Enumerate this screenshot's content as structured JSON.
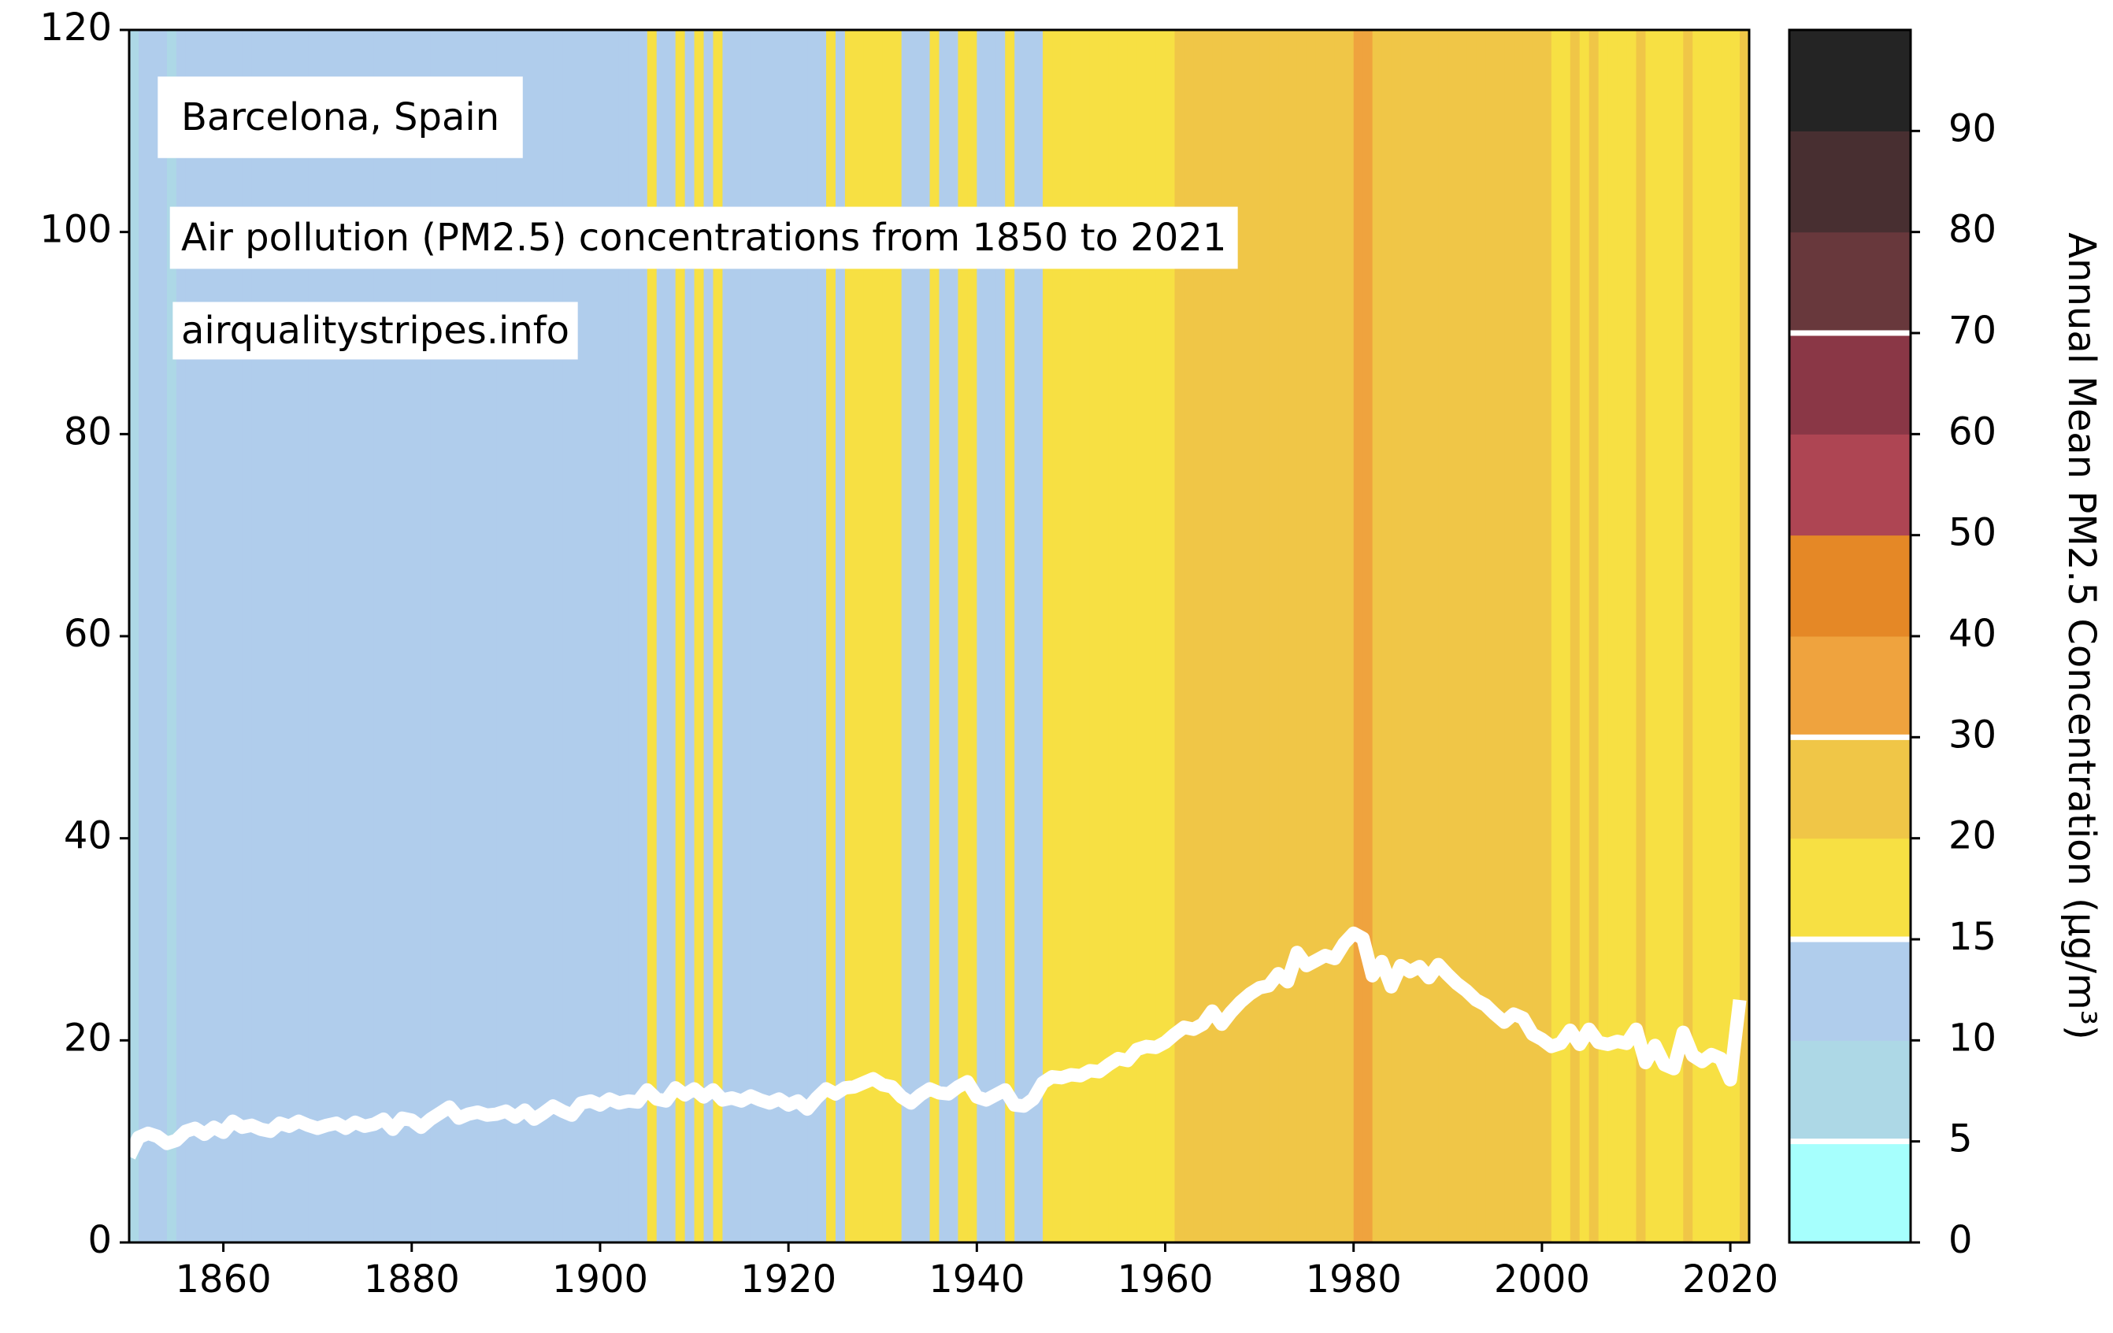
{
  "chart_data": {
    "type": "stripes",
    "title": "Barcelona, Spain",
    "subtitle": "Air pollution (PM2.5) concentrations from 1850 to 2021",
    "source": "airqualitystripes.info",
    "x": [
      1850,
      1851,
      1852,
      1853,
      1854,
      1855,
      1856,
      1857,
      1858,
      1859,
      1860,
      1861,
      1862,
      1863,
      1864,
      1865,
      1866,
      1867,
      1868,
      1869,
      1870,
      1871,
      1872,
      1873,
      1874,
      1875,
      1876,
      1877,
      1878,
      1879,
      1880,
      1881,
      1882,
      1883,
      1884,
      1885,
      1886,
      1887,
      1888,
      1889,
      1890,
      1891,
      1892,
      1893,
      1894,
      1895,
      1896,
      1897,
      1898,
      1899,
      1900,
      1901,
      1902,
      1903,
      1904,
      1905,
      1906,
      1907,
      1908,
      1909,
      1910,
      1911,
      1912,
      1913,
      1914,
      1915,
      1916,
      1917,
      1918,
      1919,
      1920,
      1921,
      1922,
      1923,
      1924,
      1925,
      1926,
      1927,
      1928,
      1929,
      1930,
      1931,
      1932,
      1933,
      1934,
      1935,
      1936,
      1937,
      1938,
      1939,
      1940,
      1941,
      1942,
      1943,
      1944,
      1945,
      1946,
      1947,
      1948,
      1949,
      1950,
      1951,
      1952,
      1953,
      1954,
      1955,
      1956,
      1957,
      1958,
      1959,
      1960,
      1961,
      1962,
      1963,
      1964,
      1965,
      1966,
      1967,
      1968,
      1969,
      1970,
      1971,
      1972,
      1973,
      1974,
      1975,
      1976,
      1977,
      1978,
      1979,
      1980,
      1981,
      1982,
      1983,
      1984,
      1985,
      1986,
      1987,
      1988,
      1989,
      1990,
      1991,
      1992,
      1993,
      1994,
      1995,
      1996,
      1997,
      1998,
      1999,
      2000,
      2001,
      2002,
      2003,
      2004,
      2005,
      2006,
      2007,
      2008,
      2009,
      2010,
      2011,
      2012,
      2013,
      2014,
      2015,
      2016,
      2017,
      2018,
      2019,
      2020,
      2021
    ],
    "values": [
      8.5,
      10.4,
      10.8,
      10.5,
      9.8,
      10.1,
      11.0,
      11.3,
      10.7,
      11.4,
      10.9,
      12.0,
      11.4,
      11.6,
      11.2,
      11.0,
      11.8,
      11.5,
      12.0,
      11.6,
      11.3,
      11.6,
      11.8,
      11.3,
      11.9,
      11.5,
      11.7,
      12.2,
      11.2,
      12.3,
      12.1,
      11.4,
      12.2,
      12.8,
      13.4,
      12.3,
      12.7,
      12.9,
      12.6,
      12.7,
      13.0,
      12.4,
      13.1,
      12.2,
      12.8,
      13.5,
      13.0,
      12.6,
      13.8,
      14.0,
      13.6,
      14.2,
      13.8,
      14.0,
      13.9,
      15.1,
      14.2,
      14.0,
      15.3,
      14.6,
      15.2,
      14.4,
      15.1,
      14.1,
      14.3,
      14.0,
      14.5,
      14.1,
      13.8,
      14.2,
      13.6,
      14.0,
      13.2,
      14.3,
      15.2,
      14.7,
      15.3,
      15.4,
      15.8,
      16.2,
      15.6,
      15.4,
      14.4,
      13.8,
      14.6,
      15.2,
      14.8,
      14.7,
      15.4,
      15.9,
      14.4,
      14.1,
      14.6,
      15.1,
      13.6,
      13.5,
      14.2,
      15.8,
      16.4,
      16.3,
      16.6,
      16.5,
      17.0,
      16.9,
      17.6,
      18.2,
      18.0,
      19.1,
      19.4,
      19.3,
      19.8,
      20.6,
      21.3,
      21.1,
      21.6,
      22.9,
      21.6,
      22.8,
      23.8,
      24.6,
      25.2,
      25.4,
      26.6,
      25.8,
      28.7,
      27.4,
      27.9,
      28.4,
      28.1,
      29.6,
      30.6,
      30.1,
      26.4,
      27.8,
      25.3,
      27.4,
      26.8,
      27.3,
      26.2,
      27.5,
      26.5,
      25.6,
      24.9,
      24.0,
      23.5,
      22.6,
      21.8,
      22.6,
      22.2,
      20.6,
      20.1,
      19.4,
      19.7,
      21.0,
      19.6,
      21.1,
      19.8,
      19.6,
      19.9,
      19.7,
      21.1,
      17.8,
      19.5,
      17.6,
      17.2,
      20.8,
      18.5,
      17.9,
      18.6,
      18.2,
      16.1,
      24.0
    ],
    "line_color": "#ffffff",
    "xlim": [
      1850,
      2022
    ],
    "xticks": [
      1860,
      1880,
      1900,
      1920,
      1940,
      1960,
      1980,
      2000,
      2020
    ],
    "ylim": [
      0,
      120
    ],
    "yticks": [
      0,
      20,
      40,
      60,
      80,
      100,
      120
    ],
    "colorbar": {
      "label": "Annual Mean PM2.5 Concentration (μg/m³)",
      "bounds": [
        0,
        5,
        10,
        15,
        20,
        30,
        40,
        50,
        60,
        70,
        80,
        90,
        100
      ],
      "colors": [
        "#a6fffd",
        "#add8e6",
        "#b0cdec",
        "#f7e043",
        "#f0c647",
        "#efa33e",
        "#e58826",
        "#ae4553",
        "#8a3746",
        "#68383c",
        "#482f31",
        "#242424"
      ],
      "ticks": [
        0,
        5,
        10,
        15,
        20,
        30,
        40,
        50,
        60,
        70,
        80,
        90
      ],
      "markers": [
        5,
        15,
        30,
        70
      ]
    }
  }
}
